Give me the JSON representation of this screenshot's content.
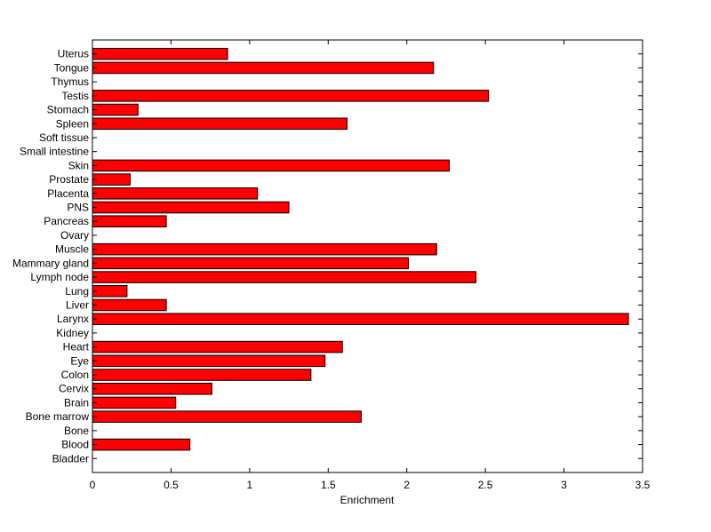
{
  "chart_data": {
    "type": "bar",
    "orientation": "horizontal",
    "categories": [
      "Bladder",
      "Blood",
      "Bone",
      "Bone marrow",
      "Brain",
      "Cervix",
      "Colon",
      "Eye",
      "Heart",
      "Kidney",
      "Larynx",
      "Liver",
      "Lung",
      "Lymph node",
      "Mammary gland",
      "Muscle",
      "Ovary",
      "Pancreas",
      "PNS",
      "Placenta",
      "Prostate",
      "Skin",
      "Small intestine",
      "Soft tissue",
      "Spleen",
      "Stomach",
      "Testis",
      "Thymus",
      "Tongue",
      "Uterus"
    ],
    "values": [
      0,
      0.62,
      0,
      1.71,
      0.53,
      0.76,
      1.39,
      1.48,
      1.59,
      0,
      3.41,
      0.47,
      0.22,
      2.44,
      2.01,
      2.19,
      0,
      0.47,
      1.25,
      1.05,
      0.24,
      2.27,
      0,
      0,
      1.62,
      0.29,
      2.52,
      0,
      2.17,
      0.86
    ],
    "xlabel": "Enrichment",
    "ylabel": "",
    "title": "",
    "xlim": [
      0,
      3.5
    ],
    "xticks": [
      "0",
      "0.5",
      "1",
      "1.5",
      "2",
      "2.5",
      "3",
      "3.5"
    ],
    "bar_color": "#ff0000",
    "bar_edge_color": "#000000",
    "grid": false,
    "legend": "none"
  }
}
